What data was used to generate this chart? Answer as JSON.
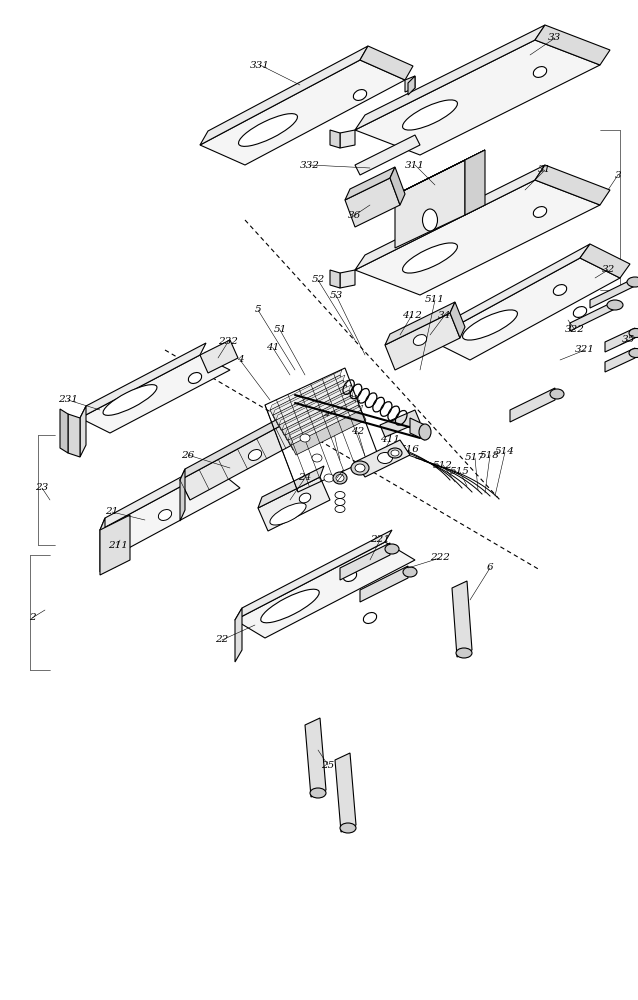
{
  "bg_color": "#ffffff",
  "lc": "#000000",
  "lw": 0.8,
  "lw_thin": 0.4,
  "lw_thick": 1.2,
  "fs": 7.5,
  "fig_w": 6.38,
  "fig_h": 10.0,
  "dpi": 100
}
